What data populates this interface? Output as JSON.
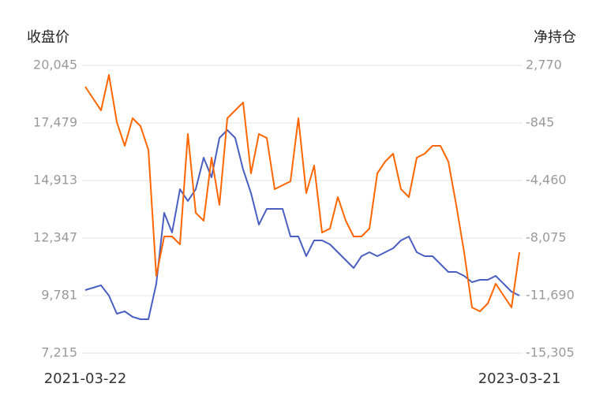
{
  "chart_data": {
    "type": "line",
    "y_label": "收盘价",
    "y2_label": "净持仓",
    "categories": [
      "2021-03-22",
      null,
      null,
      null,
      null,
      null,
      null,
      null,
      null,
      null,
      null,
      null,
      null,
      null,
      null,
      null,
      null,
      null,
      null,
      null,
      null,
      null,
      null,
      null,
      null,
      null,
      null,
      null,
      null,
      null,
      null,
      null,
      null,
      null,
      null,
      null,
      null,
      null,
      null,
      null,
      null,
      null,
      null,
      null,
      null,
      null,
      null,
      null,
      null,
      null,
      null,
      null,
      null,
      null,
      null,
      "2023-03-21"
    ],
    "series": [
      {
        "color": "#4a5fc1",
        "values": [
          10027,
          10133,
          10238,
          9781,
          8973,
          9078,
          8832,
          8727,
          8727,
          10308,
          13472,
          12593,
          14526,
          13999,
          14526,
          15932,
          15054,
          16811,
          17163,
          16811,
          15405,
          14351,
          12945,
          13648,
          13648,
          13648,
          12417,
          12417,
          11539,
          12242,
          12242,
          12066,
          11714,
          11363,
          11011,
          11539,
          11714,
          11539,
          11714,
          11890,
          12242,
          12417,
          11714,
          11539,
          11539,
          11187,
          10836,
          10836,
          10660,
          10379,
          10484,
          10484,
          10660,
          10308,
          9957,
          9781
        ]
      },
      {
        "color": "#ff6600",
        "axis": "y2",
        "values": [
          1433,
          690,
          -53,
          2176,
          -795,
          -2281,
          -548,
          -1043,
          -2529,
          -10452,
          -7976,
          -7976,
          -8471,
          -1538,
          -6490,
          -6985,
          -3024,
          -5995,
          -548,
          -53,
          443,
          -4014,
          -1538,
          -1786,
          -5005,
          -4757,
          -4509,
          -548,
          -5252,
          -3519,
          -7728,
          -7481,
          -5500,
          -6985,
          -7976,
          -7976,
          -7481,
          -4014,
          -3271,
          -2776,
          -5005,
          -5500,
          -3024,
          -2776,
          -2281,
          -2281,
          -3271,
          -5995,
          -8966,
          -12433,
          -12680,
          -12185,
          -10947,
          -11690,
          -12433,
          -8966
        ]
      }
    ],
    "ylim": [
      7215,
      20045
    ],
    "yticks": [
      {
        "value": 7215,
        "label": "7,215"
      },
      {
        "value": 9781,
        "label": "9,781"
      },
      {
        "value": 12347,
        "label": "12,347"
      },
      {
        "value": 14913,
        "label": "14,913"
      },
      {
        "value": 17479,
        "label": "17,479"
      },
      {
        "value": 20045,
        "label": "20,045"
      }
    ],
    "y2lim": [
      -15305,
      2770
    ],
    "y2ticks": [
      {
        "value": -15305,
        "label": "-15,305"
      },
      {
        "value": -11690,
        "label": "-11,690"
      },
      {
        "value": -8075,
        "label": "-8,075"
      },
      {
        "value": -4460,
        "label": "-4,460"
      },
      -845,
      {
        "value": 2770,
        "label": "2,770"
      }
    ],
    "grid": true
  }
}
